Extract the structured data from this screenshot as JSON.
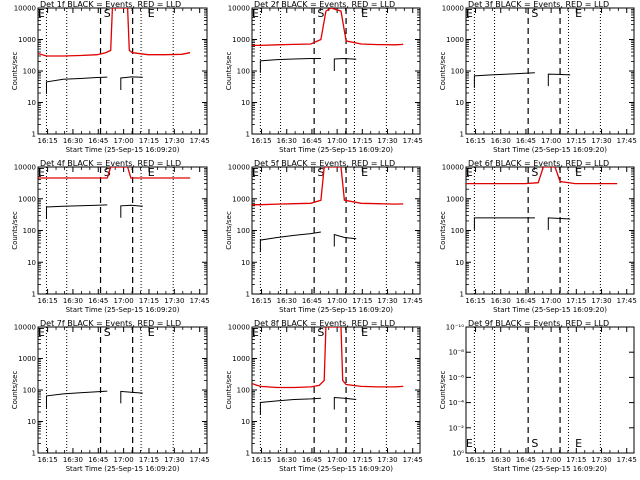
{
  "common": {
    "xlabel": "Start Time (25-Sep-15 16:09:20)",
    "ylabel": "Counts/sec",
    "x_tick_labels": [
      "16:15",
      "16:30",
      "16:45",
      "17:00",
      "17:15",
      "17:30",
      "17:45"
    ],
    "y_tick_labels": [
      "1",
      "10",
      "100",
      "1000",
      "10000"
    ],
    "markers": {
      "start": "E",
      "saa": "S",
      "end": "E"
    },
    "colors": {
      "events": "#000000",
      "lld": "#e00000"
    }
  },
  "chart_data": [
    {
      "type": "line",
      "title": "Det 1f BLACK = Events, RED = LLD",
      "x_units": "minutes after 16:09:20",
      "xlim": [
        0,
        100
      ],
      "ylog": true,
      "ylim": [
        1,
        10000
      ],
      "series": [
        {
          "name": "Events",
          "color": "#000000",
          "x": [
            5,
            15,
            25,
            35,
            41,
            49,
            55,
            62
          ],
          "y": [
            45,
            55,
            58,
            62,
            64,
            60,
            65,
            63
          ]
        },
        {
          "name": "LLD",
          "color": "#e00000",
          "x": [
            0,
            5,
            15,
            25,
            35,
            40,
            43,
            44,
            53,
            54,
            56,
            65,
            75,
            85,
            90
          ],
          "y": [
            360,
            300,
            300,
            310,
            330,
            380,
            450,
            10000,
            10000,
            450,
            380,
            330,
            330,
            340,
            380
          ]
        }
      ]
    },
    {
      "type": "line",
      "title": "Det 2f BLACK = Events, RED = LLD",
      "x_units": "minutes after 16:09:20",
      "xlim": [
        0,
        100
      ],
      "ylog": true,
      "ylim": [
        1,
        10000
      ],
      "series": [
        {
          "name": "Events",
          "color": "#000000",
          "x": [
            5,
            15,
            25,
            35,
            41,
            49,
            55,
            62
          ],
          "y": [
            210,
            230,
            240,
            250,
            250,
            240,
            250,
            235
          ]
        },
        {
          "name": "LLD",
          "color": "#e00000",
          "x": [
            0,
            5,
            15,
            25,
            35,
            41,
            44,
            47,
            53,
            56,
            65,
            75,
            85,
            90
          ],
          "y": [
            650,
            650,
            680,
            700,
            720,
            1000,
            8000,
            10000,
            8000,
            900,
            720,
            690,
            680,
            700
          ]
        }
      ]
    },
    {
      "type": "line",
      "title": "Det 3f BLACK = Events, RED = LLD",
      "x_units": "minutes after 16:09:20",
      "xlim": [
        0,
        100
      ],
      "ylog": true,
      "ylim": [
        1,
        10000
      ],
      "series": [
        {
          "name": "Events",
          "color": "#000000",
          "x": [
            5,
            15,
            25,
            35,
            41,
            49,
            55,
            62
          ],
          "y": [
            70,
            75,
            80,
            85,
            88,
            80,
            78,
            75
          ]
        },
        {
          "name": "LLD",
          "color": "#e00000",
          "x": [],
          "y": []
        }
      ]
    },
    {
      "type": "line",
      "title": "Det 4f BLACK = Events, RED = LLD",
      "x_units": "minutes after 16:09:20",
      "xlim": [
        0,
        100
      ],
      "ylog": true,
      "ylim": [
        1,
        10000
      ],
      "series": [
        {
          "name": "Events",
          "color": "#000000",
          "x": [
            5,
            15,
            25,
            35,
            41,
            49,
            55,
            62
          ],
          "y": [
            550,
            580,
            600,
            620,
            640,
            600,
            620,
            580
          ]
        },
        {
          "name": "LLD",
          "color": "#e00000",
          "x": [
            0,
            41,
            43,
            53,
            55,
            90
          ],
          "y": [
            4500,
            4500,
            10000,
            10000,
            4500,
            4500
          ]
        }
      ]
    },
    {
      "type": "line",
      "title": "Det 5f BLACK = Events, RED = LLD",
      "x_units": "minutes after 16:09:20",
      "xlim": [
        0,
        100
      ],
      "ylog": true,
      "ylim": [
        1,
        10000
      ],
      "series": [
        {
          "name": "Events",
          "color": "#000000",
          "x": [
            5,
            15,
            25,
            35,
            41,
            49,
            55,
            62
          ],
          "y": [
            50,
            60,
            70,
            80,
            90,
            75,
            60,
            55
          ]
        },
        {
          "name": "LLD",
          "color": "#e00000",
          "x": [
            0,
            5,
            15,
            25,
            35,
            41,
            43,
            53,
            55,
            65,
            75,
            85,
            90
          ],
          "y": [
            650,
            650,
            680,
            700,
            720,
            900,
            10000,
            10000,
            900,
            720,
            700,
            680,
            690
          ]
        }
      ]
    },
    {
      "type": "line",
      "title": "Det 6f BLACK = Events, RED = LLD",
      "x_units": "minutes after 16:09:20",
      "xlim": [
        0,
        100
      ],
      "ylog": true,
      "ylim": [
        1,
        10000
      ],
      "series": [
        {
          "name": "Events",
          "color": "#000000",
          "x": [
            5,
            15,
            25,
            35,
            41,
            49,
            55,
            62
          ],
          "y": [
            250,
            250,
            250,
            250,
            250,
            250,
            240,
            230
          ]
        },
        {
          "name": "LLD",
          "color": "#e00000",
          "x": [
            0,
            5,
            15,
            25,
            35,
            43,
            46,
            53,
            56,
            65,
            75,
            85,
            90
          ],
          "y": [
            3000,
            3000,
            3000,
            3000,
            3000,
            3200,
            10000,
            10000,
            3500,
            3000,
            3000,
            3000,
            3000
          ]
        }
      ]
    },
    {
      "type": "line",
      "title": "Det 7f BLACK = Events, RED = LLD",
      "x_units": "minutes after 16:09:20",
      "xlim": [
        0,
        100
      ],
      "ylog": true,
      "ylim": [
        1,
        10000
      ],
      "series": [
        {
          "name": "Events",
          "color": "#000000",
          "x": [
            5,
            15,
            25,
            35,
            41,
            49,
            55,
            62
          ],
          "y": [
            65,
            75,
            82,
            88,
            92,
            90,
            85,
            80
          ]
        },
        {
          "name": "LLD",
          "color": "#e00000",
          "x": [],
          "y": []
        }
      ]
    },
    {
      "type": "line",
      "title": "Det 8f BLACK = Events, RED = LLD",
      "x_units": "minutes after 16:09:20",
      "xlim": [
        0,
        100
      ],
      "ylog": true,
      "ylim": [
        1,
        10000
      ],
      "series": [
        {
          "name": "Events",
          "color": "#000000",
          "x": [
            5,
            15,
            25,
            35,
            41,
            49,
            55,
            62
          ],
          "y": [
            40,
            45,
            50,
            52,
            55,
            58,
            55,
            50
          ]
        },
        {
          "name": "LLD",
          "color": "#e00000",
          "x": [
            0,
            5,
            15,
            25,
            35,
            40,
            43,
            44,
            53,
            54,
            56,
            65,
            75,
            85,
            90
          ],
          "y": [
            160,
            130,
            120,
            120,
            125,
            140,
            200,
            10000,
            10000,
            200,
            150,
            130,
            125,
            125,
            130
          ]
        }
      ]
    },
    {
      "type": "line",
      "title": "Det 9f BLACK = Events, RED = LLD",
      "x_units": "minutes after 16:09:20",
      "xlim": [
        0,
        100
      ],
      "ylog": true,
      "ylim": [
        1,
        1e-10
      ],
      "y_tick_labels": [
        "10⁰",
        "10⁻²",
        "10⁻⁴",
        "10⁻⁶",
        "10⁻⁸",
        "10⁻¹⁰"
      ],
      "series": [
        {
          "name": "Events",
          "color": "#000000",
          "x": [],
          "y": []
        },
        {
          "name": "LLD",
          "color": "#e00000",
          "x": [],
          "y": []
        }
      ]
    }
  ]
}
